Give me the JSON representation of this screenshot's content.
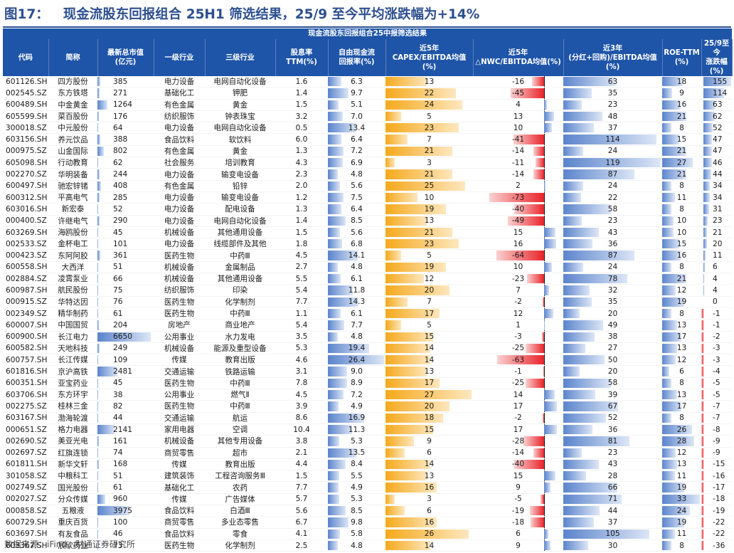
{
  "title": {
    "label": "图17：",
    "text": "现金流股东回报组合 25H1 筛选结果，25/9 至今平均涨跌幅为+14%"
  },
  "table_title": "现金流股东回报组合25中报筛选结果",
  "headers": [
    "代码",
    "简称",
    "最新总市值(亿元)",
    "一级行业",
    "三级行业",
    "股息率TTM(%)",
    "自由现金流回报率(%)",
    "近5年CAPEX/EBITDA均值(%)",
    "近5年△NWC/EBITDA均值(%)",
    "近3年(分红+回购)/EBITDA均值(%)",
    "ROE-TTM(%)",
    "25/9至今涨跌幅(%)"
  ],
  "source": "数据来源：iFind，财通证券研究所",
  "rows": [
    [
      "601126.SH",
      "四方股份",
      385,
      "电力设备",
      "电网自动化设备",
      1.6,
      6.3,
      13,
      -16,
      63,
      18,
      155
    ],
    [
      "002545.SZ",
      "东方铁塔",
      271,
      "基础化工",
      "钾肥",
      1.4,
      9.7,
      22,
      -45,
      35,
      9,
      114
    ],
    [
      "600489.SH",
      "中金黄金",
      1264,
      "有色金属",
      "黄金",
      1.5,
      5.1,
      24,
      4,
      23,
      16,
      63
    ],
    [
      "605599.SH",
      "菜百股份",
      176,
      "纺织服饰",
      "钟表珠宝",
      3.2,
      7.0,
      5,
      13,
      48,
      21,
      62
    ],
    [
      "300018.SZ",
      "中元股份",
      64,
      "电力设备",
      "电网自动化设备",
      0.5,
      13.4,
      23,
      10,
      37,
      8,
      52
    ],
    [
      "603156.SH",
      "养元饮品",
      388,
      "食品饮料",
      "软饮料",
      6.0,
      6.4,
      7,
      -41,
      114,
      15,
      47
    ],
    [
      "000975.SZ",
      "山金国际",
      802,
      "有色金属",
      "黄金",
      1.3,
      7.2,
      21,
      -14,
      24,
      21,
      47
    ],
    [
      "605098.SH",
      "行动教育",
      62,
      "社会服务",
      "培训教育",
      4.3,
      6.9,
      3,
      -11,
      119,
      27,
      46
    ],
    [
      "002270.SZ",
      "华明装备",
      244,
      "电力设备",
      "输变电设备",
      2.3,
      4.8,
      21,
      -14,
      87,
      21,
      44
    ],
    [
      "600497.SH",
      "驰宏锌锗",
      408,
      "有色金属",
      "铅锌",
      2.0,
      5.6,
      25,
      2,
      24,
      8,
      34
    ],
    [
      "600312.SH",
      "平高电气",
      285,
      "电力设备",
      "输变电设备",
      1.2,
      7.5,
      10,
      -73,
      22,
      11,
      34
    ],
    [
      "603016.SH",
      "新宏泰",
      52,
      "电力设备",
      "配电设备",
      1.3,
      6.4,
      19,
      -40,
      58,
      8,
      31
    ],
    [
      "000400.SZ",
      "许继电气",
      290,
      "电力设备",
      "电网自动化设备",
      1.4,
      8.5,
      13,
      -49,
      23,
      10,
      23
    ],
    [
      "603269.SH",
      "海鸥股份",
      45,
      "机械设备",
      "其他通用设备",
      1.5,
      5.6,
      21,
      15,
      43,
      10,
      21
    ],
    [
      "002533.SZ",
      "金杯电工",
      101,
      "电力设备",
      "线缆部件及其他",
      1.8,
      6.8,
      23,
      16,
      36,
      15,
      20
    ],
    [
      "000423.SZ",
      "东阿阿胶",
      361,
      "医药生物",
      "中药Ⅲ",
      4.5,
      14.1,
      5,
      -64,
      87,
      16,
      11
    ],
    [
      "600558.SH",
      "大西洋",
      51,
      "机械设备",
      "金属制品",
      2.7,
      4.8,
      19,
      10,
      24,
      8,
      6
    ],
    [
      "002884.SZ",
      "凌霄泵业",
      66,
      "机械设备",
      "其他通用设备",
      5.5,
      6.1,
      12,
      -23,
      78,
      21,
      4
    ],
    [
      "600987.SH",
      "航民股份",
      75,
      "纺织服饰",
      "印染",
      5.4,
      11.8,
      20,
      7,
      32,
      12,
      4
    ],
    [
      "000915.SZ",
      "华特达因",
      76,
      "医药生物",
      "化学制剂",
      7.7,
      14.3,
      7,
      -2,
      35,
      19,
      0
    ],
    [
      "002349.SZ",
      "精华制药",
      61,
      "医药生物",
      "中药Ⅲ",
      1.1,
      6.1,
      17,
      12,
      20,
      8,
      -1
    ],
    [
      "600007.SH",
      "中国国贸",
      204,
      "房地产",
      "商业地产",
      5.4,
      7.7,
      5,
      1,
      49,
      13,
      -1
    ],
    [
      "600900.SH",
      "长江电力",
      6650,
      "公用事业",
      "水力发电",
      3.5,
      4.8,
      15,
      -3,
      38,
      17,
      -2
    ],
    [
      "600582.SH",
      "天地科技",
      249,
      "机械设备",
      "能源及重型设备",
      5.3,
      19.4,
      14,
      -25,
      27,
      13,
      -3
    ],
    [
      "600757.SH",
      "长江传媒",
      109,
      "传媒",
      "教育出版",
      4.6,
      26.4,
      14,
      -63,
      50,
      12,
      -3
    ],
    [
      "601816.SH",
      "京沪高铁",
      2481,
      "交通运输",
      "铁路运输",
      3.1,
      9.0,
      13,
      -1,
      20,
      6,
      -4
    ],
    [
      "600351.SH",
      "亚宝药业",
      45,
      "医药生物",
      "中药Ⅲ",
      7.8,
      8.9,
      17,
      -25,
      58,
      8,
      -5
    ],
    [
      "603706.SH",
      "东方环宇",
      38,
      "公用事业",
      "燃气Ⅱ",
      4.5,
      7.2,
      27,
      14,
      39,
      13,
      -5
    ],
    [
      "002275.SZ",
      "桂林三金",
      82,
      "医药生物",
      "中药Ⅲ",
      3.9,
      4.9,
      20,
      17,
      67,
      17,
      -7
    ],
    [
      "603167.SH",
      "渤海轮渡",
      44,
      "交通运输",
      "航运",
      8.6,
      16.9,
      18,
      -2,
      52,
      8,
      -7
    ],
    [
      "000651.SZ",
      "格力电器",
      2141,
      "家用电器",
      "空调",
      10.4,
      11.3,
      15,
      17,
      36,
      26,
      -8
    ],
    [
      "002690.SZ",
      "美亚光电",
      161,
      "机械设备",
      "其他专用设备",
      3.8,
      5.3,
      9,
      -28,
      81,
      28,
      -9
    ],
    [
      "002697.SZ",
      "红旗连锁",
      74,
      "商贸零售",
      "超市",
      2.1,
      13.5,
      6,
      -14,
      23,
      12,
      -9
    ],
    [
      "601811.SH",
      "新华文轩",
      168,
      "传媒",
      "教育出版",
      4.4,
      8.4,
      14,
      -40,
      43,
      13,
      -15
    ],
    [
      "301058.SZ",
      "中粮科工",
      51,
      "建筑装饰",
      "工程咨询服务Ⅲ",
      1.5,
      5.5,
      13,
      15,
      28,
      11,
      -16
    ],
    [
      "002749.SZ",
      "国光股份",
      61,
      "基础化工",
      "农药",
      7.7,
      4.9,
      16,
      9,
      66,
      19,
      -17
    ],
    [
      "002027.SZ",
      "分众传媒",
      960,
      "传媒",
      "广告媒体",
      5.7,
      5.3,
      3,
      -5,
      71,
      33,
      -18
    ],
    [
      "000858.SZ",
      "五粮液",
      3975,
      "食品饮料",
      "白酒Ⅲ",
      5.6,
      8.5,
      6,
      -19,
      44,
      24,
      -19
    ],
    [
      "600729.SH",
      "重庆百货",
      100,
      "商贸零售",
      "多业态零售",
      6.7,
      9.8,
      16,
      -18,
      37,
      19,
      -22
    ],
    [
      "603697.SH",
      "有友食品",
      46,
      "食品饮料",
      "零食",
      4.1,
      5.8,
      26,
      6,
      105,
      11,
      -22
    ],
    [
      "603367.SH",
      "辰欣药业",
      73,
      "医药生物",
      "化学制剂",
      2.5,
      4.8,
      14,
      9,
      30,
      8,
      -36
    ]
  ]
}
